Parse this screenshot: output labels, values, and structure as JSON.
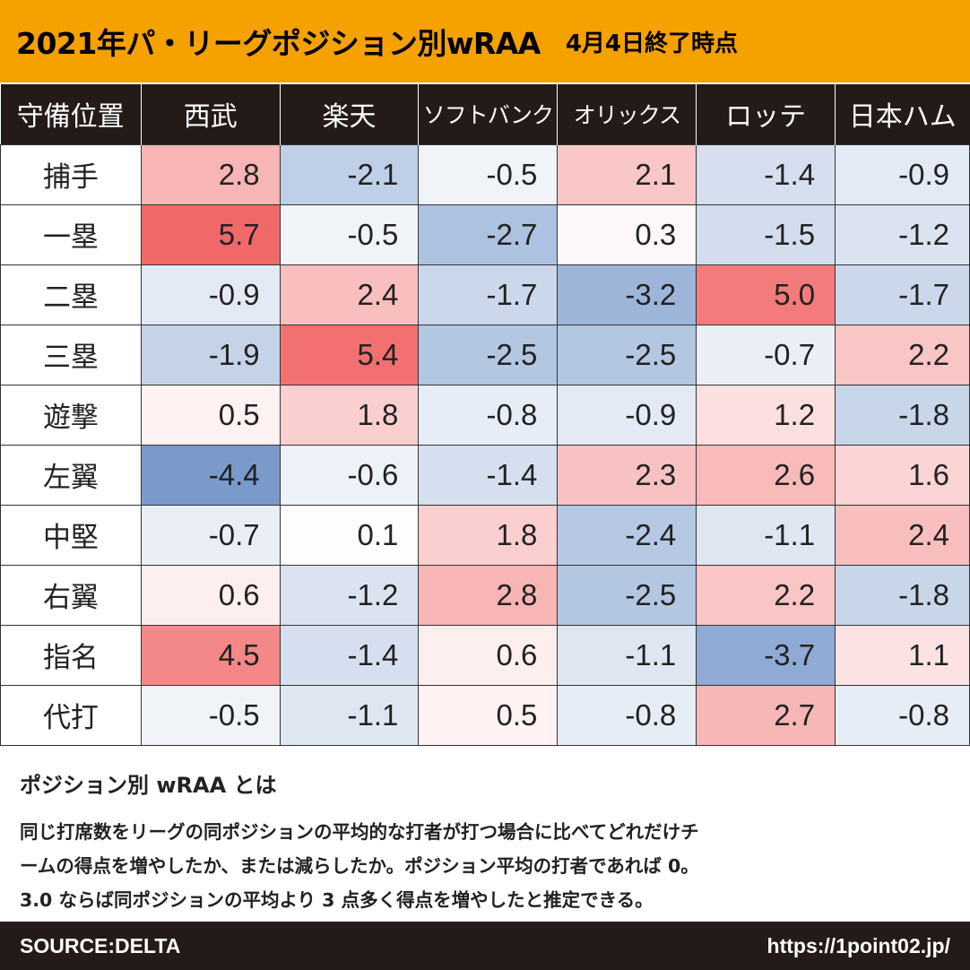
{
  "header": {
    "title": "2021年パ・リーグポジション別wRAA",
    "subtitle": "4月4日終了時点"
  },
  "colors": {
    "header_bg": "#f5a100",
    "dark_bg": "#241b19",
    "positive": "#f06060",
    "negative": "#6e91c8"
  },
  "chart_data": {
    "type": "table",
    "row_header_label": "守備位置",
    "columns": [
      "西武",
      "楽天",
      "ソフトバンク",
      "オリックス",
      "ロッテ",
      "日本ハム"
    ],
    "rows": [
      {
        "position": "捕手",
        "values": [
          2.8,
          -2.1,
          -0.5,
          2.1,
          -1.4,
          -0.9
        ]
      },
      {
        "position": "一塁",
        "values": [
          5.7,
          -0.5,
          -2.7,
          0.3,
          -1.5,
          -1.2
        ]
      },
      {
        "position": "二塁",
        "values": [
          -0.9,
          2.4,
          -1.7,
          -3.2,
          5.0,
          -1.7
        ]
      },
      {
        "position": "三塁",
        "values": [
          -1.9,
          5.4,
          -2.5,
          -2.5,
          -0.7,
          2.2
        ]
      },
      {
        "position": "遊撃",
        "values": [
          0.5,
          1.8,
          -0.8,
          -0.9,
          1.2,
          -1.8
        ]
      },
      {
        "position": "左翼",
        "values": [
          -4.4,
          -0.6,
          -1.4,
          2.3,
          2.6,
          1.6
        ]
      },
      {
        "position": "中堅",
        "values": [
          -0.7,
          0.1,
          1.8,
          -2.4,
          -1.1,
          2.4
        ]
      },
      {
        "position": "右翼",
        "values": [
          0.6,
          -1.2,
          2.8,
          -2.5,
          2.2,
          -1.8
        ]
      },
      {
        "position": "指名",
        "values": [
          4.5,
          -1.4,
          0.6,
          -1.1,
          -3.7,
          1.1
        ]
      },
      {
        "position": "代打",
        "values": [
          -0.5,
          -1.1,
          0.5,
          -0.8,
          2.7,
          -0.8
        ]
      }
    ]
  },
  "note": {
    "heading": "ポジション別 wRAA とは",
    "lines": [
      "同じ打席数をリーグの同ポジションの平均的な打者が打つ場合に比べてどれだけチ",
      "ームの得点を増やしたか、または減らしたか。ポジション平均の打者であれば 0。",
      "3.0 ならば同ポジションの平均より 3 点多く得点を増やしたと推定できる。"
    ]
  },
  "footer": {
    "source": "SOURCE:DELTA",
    "url": "https://1point02.jp/"
  }
}
